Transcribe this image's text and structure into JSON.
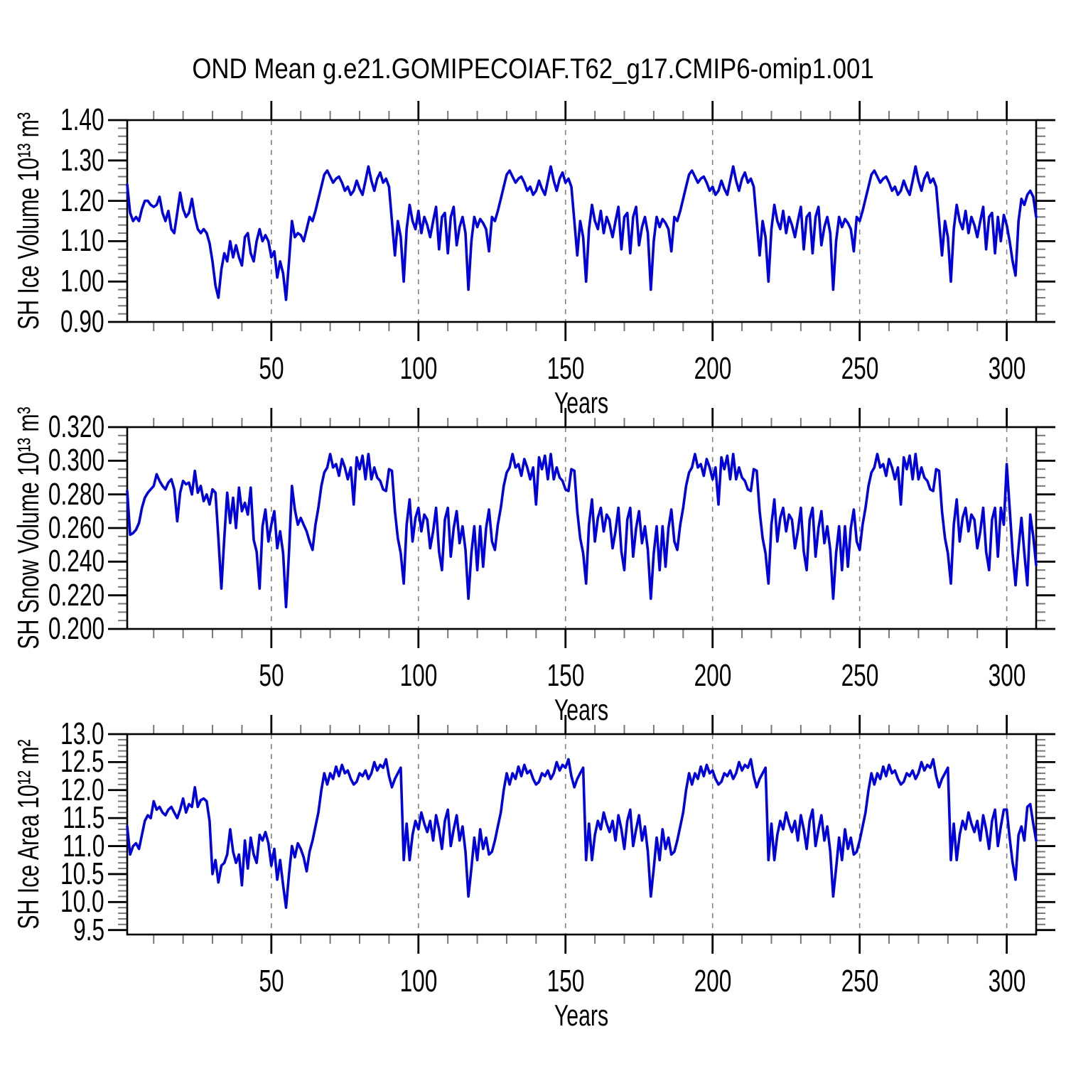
{
  "title": "OND Mean g.e21.GOMIPECOIAF.T62_g17.CMIP6-omip1.001",
  "line_color": "#0000dd",
  "grid_color": "#808080",
  "frame_color": "#000000",
  "chart_data": [
    {
      "type": "line",
      "ylabel": "SH Ice Volume 10¹³ m³",
      "xlabel": "Years",
      "legend": "none",
      "grid": "vertical-dashed-at-x-majors",
      "xlim": [
        1,
        310
      ],
      "ylim": [
        0.9,
        1.4
      ],
      "yticks": [
        1.4,
        1.3,
        1.2,
        1.1,
        1.0,
        0.9
      ],
      "ytick_labels": [
        "1.40",
        "1.30",
        "1.20",
        "1.10",
        "1.00",
        "0.90"
      ],
      "y_minor_step": 0.02,
      "xticks": [
        50,
        100,
        150,
        200,
        250,
        300
      ],
      "xtick_labels": [
        "50",
        "100",
        "150",
        "200",
        "250",
        "300"
      ],
      "x_minor_step": 10,
      "x_start": 1,
      "x_step": 1,
      "n_points": 310,
      "values": [
        1.24,
        1.17,
        1.15,
        1.16,
        1.15,
        1.18,
        1.2,
        1.2,
        1.19,
        1.185,
        1.19,
        1.21,
        1.17,
        1.15,
        1.175,
        1.13,
        1.12,
        1.17,
        1.22,
        1.18,
        1.16,
        1.17,
        1.205,
        1.16,
        1.13,
        1.12,
        1.13,
        1.12,
        1.095,
        1.05,
        0.99,
        0.96,
        1.03,
        1.07,
        1.05,
        1.1,
        1.06,
        1.09,
        1.06,
        1.04,
        1.11,
        1.12,
        1.07,
        1.05,
        1.1,
        1.13,
        1.1,
        1.115,
        1.1,
        1.06,
        1.075,
        1.01,
        1.05,
        1.02,
        0.955,
        1.05,
        1.15,
        1.11,
        1.12,
        1.115,
        1.1,
        1.13,
        1.16,
        1.15,
        1.175,
        1.205,
        1.235,
        1.265,
        1.275,
        1.26,
        1.245,
        1.255,
        1.26,
        1.245,
        1.225,
        1.235,
        1.215,
        1.225,
        1.25,
        1.23,
        1.215,
        1.25,
        1.285,
        1.25,
        1.225,
        1.255,
        1.27,
        1.245,
        1.255,
        1.235,
        1.15,
        1.065,
        1.15,
        1.11,
        1.0,
        1.13,
        1.19,
        1.15,
        1.13,
        1.175,
        1.12,
        1.16,
        1.14,
        1.11,
        1.15,
        1.185,
        1.08,
        1.16,
        1.17,
        1.07,
        1.16,
        1.185,
        1.09,
        1.135,
        1.16,
        1.12,
        0.98,
        1.1,
        1.16,
        1.135,
        1.155,
        1.145,
        1.13,
        1.075,
        1.16,
        1.15,
        1.175,
        1.205,
        1.235,
        1.265,
        1.275,
        1.26,
        1.245,
        1.255,
        1.26,
        1.245,
        1.225,
        1.235,
        1.215,
        1.225,
        1.25,
        1.23,
        1.215,
        1.25,
        1.285,
        1.25,
        1.225,
        1.255,
        1.27,
        1.245,
        1.255,
        1.235,
        1.15,
        1.065,
        1.15,
        1.11,
        1.0,
        1.13,
        1.19,
        1.15,
        1.13,
        1.175,
        1.12,
        1.16,
        1.14,
        1.11,
        1.15,
        1.185,
        1.08,
        1.16,
        1.17,
        1.07,
        1.16,
        1.185,
        1.09,
        1.135,
        1.16,
        1.12,
        0.98,
        1.1,
        1.16,
        1.135,
        1.155,
        1.145,
        1.13,
        1.075,
        1.16,
        1.15,
        1.175,
        1.205,
        1.235,
        1.265,
        1.275,
        1.26,
        1.245,
        1.255,
        1.26,
        1.245,
        1.225,
        1.235,
        1.215,
        1.225,
        1.25,
        1.23,
        1.215,
        1.25,
        1.285,
        1.25,
        1.225,
        1.255,
        1.27,
        1.245,
        1.255,
        1.235,
        1.15,
        1.065,
        1.15,
        1.11,
        1.0,
        1.13,
        1.19,
        1.15,
        1.13,
        1.175,
        1.12,
        1.16,
        1.14,
        1.11,
        1.15,
        1.185,
        1.08,
        1.16,
        1.17,
        1.07,
        1.16,
        1.185,
        1.09,
        1.135,
        1.16,
        1.12,
        0.98,
        1.1,
        1.16,
        1.135,
        1.155,
        1.145,
        1.13,
        1.075,
        1.16,
        1.15,
        1.175,
        1.205,
        1.235,
        1.265,
        1.275,
        1.26,
        1.245,
        1.255,
        1.26,
        1.245,
        1.225,
        1.235,
        1.215,
        1.225,
        1.25,
        1.23,
        1.215,
        1.25,
        1.285,
        1.25,
        1.225,
        1.255,
        1.27,
        1.245,
        1.255,
        1.235,
        1.15,
        1.065,
        1.15,
        1.11,
        1.0,
        1.13,
        1.19,
        1.15,
        1.13,
        1.175,
        1.12,
        1.16,
        1.14,
        1.11,
        1.15,
        1.185,
        1.08,
        1.16,
        1.17,
        1.07,
        1.16,
        1.1,
        1.165,
        1.14,
        1.1,
        1.05,
        1.015,
        1.15,
        1.205,
        1.19,
        1.215,
        1.225,
        1.21,
        1.16
      ]
    },
    {
      "type": "line",
      "ylabel": "SH Snow Volume 10¹³ m³",
      "xlabel": "Years",
      "legend": "none",
      "grid": "vertical-dashed-at-x-majors",
      "xlim": [
        1,
        310
      ],
      "ylim": [
        0.2,
        0.32
      ],
      "yticks": [
        0.32,
        0.3,
        0.28,
        0.26,
        0.24,
        0.22,
        0.2
      ],
      "ytick_labels": [
        "0.320",
        "0.300",
        "0.280",
        "0.260",
        "0.240",
        "0.220",
        "0.200"
      ],
      "y_minor_step": 0.005,
      "xticks": [
        50,
        100,
        150,
        200,
        250,
        300
      ],
      "xtick_labels": [
        "50",
        "100",
        "150",
        "200",
        "250",
        "300"
      ],
      "x_minor_step": 10,
      "x_start": 1,
      "x_step": 1,
      "n_points": 310,
      "values": [
        0.282,
        0.256,
        0.257,
        0.259,
        0.263,
        0.272,
        0.278,
        0.281,
        0.283,
        0.285,
        0.292,
        0.288,
        0.285,
        0.283,
        0.287,
        0.289,
        0.283,
        0.264,
        0.281,
        0.288,
        0.286,
        0.287,
        0.28,
        0.294,
        0.281,
        0.285,
        0.276,
        0.28,
        0.274,
        0.283,
        0.281,
        0.254,
        0.224,
        0.254,
        0.281,
        0.263,
        0.278,
        0.26,
        0.284,
        0.27,
        0.275,
        0.268,
        0.284,
        0.253,
        0.246,
        0.224,
        0.261,
        0.271,
        0.252,
        0.262,
        0.27,
        0.248,
        0.258,
        0.245,
        0.213,
        0.246,
        0.285,
        0.271,
        0.262,
        0.266,
        0.262,
        0.258,
        0.252,
        0.247,
        0.262,
        0.272,
        0.285,
        0.293,
        0.296,
        0.304,
        0.296,
        0.298,
        0.291,
        0.301,
        0.296,
        0.289,
        0.296,
        0.274,
        0.302,
        0.295,
        0.303,
        0.289,
        0.304,
        0.289,
        0.296,
        0.29,
        0.288,
        0.283,
        0.282,
        0.295,
        0.294,
        0.27,
        0.254,
        0.245,
        0.227,
        0.262,
        0.277,
        0.252,
        0.266,
        0.272,
        0.258,
        0.268,
        0.265,
        0.248,
        0.258,
        0.272,
        0.246,
        0.235,
        0.265,
        0.272,
        0.243,
        0.26,
        0.27,
        0.251,
        0.261,
        0.247,
        0.218,
        0.245,
        0.261,
        0.235,
        0.261,
        0.237,
        0.26,
        0.271,
        0.252,
        0.247,
        0.262,
        0.272,
        0.285,
        0.293,
        0.296,
        0.304,
        0.296,
        0.298,
        0.291,
        0.301,
        0.296,
        0.289,
        0.296,
        0.274,
        0.302,
        0.295,
        0.303,
        0.289,
        0.304,
        0.289,
        0.296,
        0.29,
        0.288,
        0.283,
        0.282,
        0.295,
        0.294,
        0.27,
        0.254,
        0.245,
        0.227,
        0.262,
        0.277,
        0.252,
        0.266,
        0.272,
        0.258,
        0.268,
        0.265,
        0.248,
        0.258,
        0.272,
        0.246,
        0.235,
        0.265,
        0.272,
        0.243,
        0.26,
        0.27,
        0.251,
        0.261,
        0.247,
        0.218,
        0.245,
        0.261,
        0.235,
        0.261,
        0.237,
        0.26,
        0.271,
        0.252,
        0.247,
        0.262,
        0.272,
        0.285,
        0.293,
        0.296,
        0.304,
        0.296,
        0.298,
        0.291,
        0.301,
        0.296,
        0.289,
        0.296,
        0.274,
        0.302,
        0.295,
        0.303,
        0.289,
        0.304,
        0.289,
        0.296,
        0.29,
        0.288,
        0.283,
        0.282,
        0.295,
        0.294,
        0.27,
        0.254,
        0.245,
        0.227,
        0.262,
        0.277,
        0.252,
        0.266,
        0.272,
        0.258,
        0.268,
        0.265,
        0.248,
        0.258,
        0.272,
        0.246,
        0.235,
        0.265,
        0.272,
        0.243,
        0.26,
        0.27,
        0.251,
        0.261,
        0.247,
        0.218,
        0.245,
        0.261,
        0.235,
        0.261,
        0.237,
        0.26,
        0.271,
        0.252,
        0.247,
        0.262,
        0.272,
        0.285,
        0.293,
        0.296,
        0.304,
        0.296,
        0.298,
        0.291,
        0.301,
        0.296,
        0.289,
        0.296,
        0.274,
        0.302,
        0.295,
        0.303,
        0.289,
        0.304,
        0.289,
        0.296,
        0.29,
        0.288,
        0.283,
        0.282,
        0.295,
        0.294,
        0.27,
        0.254,
        0.245,
        0.227,
        0.262,
        0.277,
        0.252,
        0.266,
        0.272,
        0.258,
        0.268,
        0.265,
        0.248,
        0.258,
        0.272,
        0.246,
        0.235,
        0.265,
        0.272,
        0.243,
        0.272,
        0.262,
        0.298,
        0.272,
        0.245,
        0.226,
        0.248,
        0.266,
        0.245,
        0.226,
        0.268,
        0.255,
        0.238
      ]
    },
    {
      "type": "line",
      "ylabel": "SH Ice Area 10¹² m²",
      "xlabel": "Years",
      "legend": "none",
      "grid": "vertical-dashed-at-x-majors",
      "xlim": [
        1,
        310
      ],
      "ylim": [
        9.42,
        13.0
      ],
      "yticks": [
        13.0,
        12.5,
        12.0,
        11.5,
        11.0,
        10.5,
        10.0,
        9.5
      ],
      "ytick_labels": [
        "13.0",
        "12.5",
        "12.0",
        "11.5",
        "11.0",
        "10.5",
        "10.0",
        "9.5"
      ],
      "y_minor_step": 0.1,
      "xticks": [
        50,
        100,
        150,
        200,
        250,
        300
      ],
      "xtick_labels": [
        "50",
        "100",
        "150",
        "200",
        "250",
        "300"
      ],
      "x_minor_step": 10,
      "x_start": 1,
      "x_step": 1,
      "n_points": 310,
      "values": [
        11.35,
        10.85,
        11.0,
        11.05,
        10.95,
        11.2,
        11.45,
        11.55,
        11.5,
        11.8,
        11.65,
        11.7,
        11.6,
        11.55,
        11.65,
        11.7,
        11.6,
        11.5,
        11.65,
        11.85,
        11.6,
        11.75,
        11.7,
        12.05,
        11.7,
        11.82,
        11.85,
        11.8,
        11.45,
        10.5,
        10.75,
        10.35,
        10.65,
        10.7,
        10.85,
        11.3,
        10.9,
        10.7,
        10.85,
        10.3,
        11.1,
        10.6,
        11.15,
        10.85,
        10.7,
        11.2,
        11.1,
        11.25,
        11.05,
        10.65,
        10.95,
        10.4,
        10.75,
        10.3,
        9.9,
        10.5,
        11.0,
        10.8,
        11.05,
        10.95,
        10.8,
        10.55,
        10.9,
        11.1,
        11.35,
        11.6,
        12.0,
        12.3,
        12.1,
        12.3,
        12.2,
        12.42,
        12.25,
        12.45,
        12.3,
        12.35,
        12.2,
        12.1,
        12.15,
        12.3,
        12.25,
        12.35,
        12.2,
        12.3,
        12.5,
        12.35,
        12.45,
        12.4,
        12.55,
        12.25,
        12.05,
        12.2,
        12.3,
        12.4,
        10.75,
        11.4,
        10.75,
        11.2,
        11.45,
        11.3,
        11.6,
        11.4,
        11.25,
        11.45,
        11.1,
        11.55,
        11.3,
        10.95,
        11.45,
        11.65,
        11.0,
        11.3,
        11.55,
        11.1,
        11.35,
        10.9,
        10.1,
        10.6,
        11.15,
        10.75,
        11.3,
        10.95,
        11.15,
        10.85,
        10.9,
        11.1,
        11.35,
        11.6,
        12.0,
        12.3,
        12.1,
        12.3,
        12.2,
        12.42,
        12.25,
        12.45,
        12.3,
        12.35,
        12.2,
        12.1,
        12.15,
        12.3,
        12.25,
        12.35,
        12.2,
        12.3,
        12.5,
        12.35,
        12.45,
        12.4,
        12.55,
        12.25,
        12.05,
        12.2,
        12.3,
        12.4,
        10.75,
        11.4,
        10.75,
        11.2,
        11.45,
        11.3,
        11.6,
        11.4,
        11.25,
        11.45,
        11.1,
        11.55,
        11.3,
        10.95,
        11.45,
        11.65,
        11.0,
        11.3,
        11.55,
        11.1,
        11.35,
        10.9,
        10.1,
        10.6,
        11.15,
        10.75,
        11.3,
        10.95,
        11.15,
        10.85,
        10.9,
        11.1,
        11.35,
        11.6,
        12.0,
        12.3,
        12.1,
        12.3,
        12.2,
        12.42,
        12.25,
        12.45,
        12.3,
        12.35,
        12.2,
        12.1,
        12.15,
        12.3,
        12.25,
        12.35,
        12.2,
        12.3,
        12.5,
        12.35,
        12.45,
        12.4,
        12.55,
        12.25,
        12.05,
        12.2,
        12.3,
        12.4,
        10.75,
        11.4,
        10.75,
        11.2,
        11.45,
        11.3,
        11.6,
        11.4,
        11.25,
        11.45,
        11.1,
        11.55,
        11.3,
        10.95,
        11.45,
        11.65,
        11.0,
        11.3,
        11.55,
        11.1,
        11.35,
        10.9,
        10.1,
        10.6,
        11.15,
        10.75,
        11.3,
        10.95,
        11.15,
        10.85,
        10.9,
        11.1,
        11.35,
        11.6,
        12.0,
        12.3,
        12.1,
        12.3,
        12.2,
        12.42,
        12.25,
        12.45,
        12.3,
        12.35,
        12.2,
        12.1,
        12.15,
        12.3,
        12.25,
        12.35,
        12.2,
        12.3,
        12.5,
        12.35,
        12.45,
        12.4,
        12.55,
        12.25,
        12.05,
        12.2,
        12.3,
        12.4,
        10.75,
        11.4,
        10.75,
        11.2,
        11.45,
        11.3,
        11.6,
        11.4,
        11.25,
        11.45,
        11.1,
        11.55,
        11.3,
        10.95,
        11.45,
        11.65,
        11.0,
        11.35,
        11.65,
        11.65,
        11.15,
        10.7,
        10.4,
        11.2,
        11.35,
        11.1,
        11.7,
        11.75,
        11.4,
        11.1
      ]
    }
  ]
}
